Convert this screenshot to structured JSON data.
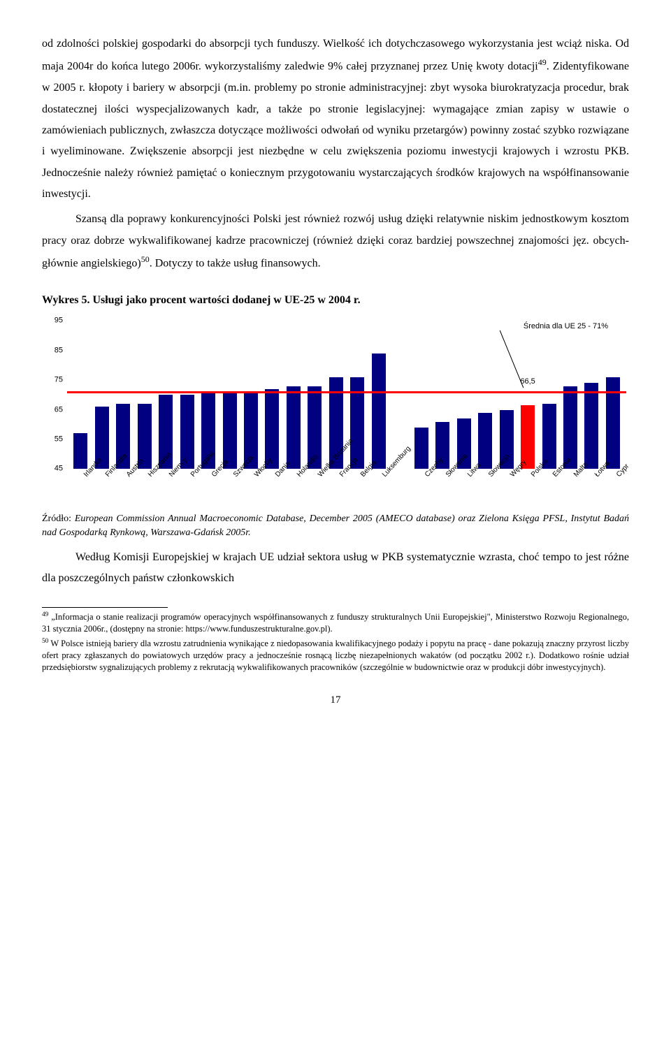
{
  "paragraphs": {
    "p1": "od zdolności polskiej gospodarki do absorpcji tych funduszy. Wielkość ich dotychczasowego wykorzystania jest wciąż niska. Od maja 2004r do końca lutego 2006r. wykorzystaliśmy zaledwie 9% całej przyznanej przez Unię kwoty dotacji",
    "p1_sup": "49",
    "p1_cont": ". Zidentyfikowane w 2005 r. kłopoty i bariery w absorpcji (m.in. problemy po stronie administracyjnej: zbyt wysoka biurokratyzacja procedur, brak dostatecznej ilości wyspecjalizowanych kadr, a także po stronie legislacyjnej: wymagające zmian zapisy w ustawie o zamówieniach publicznych, zwłaszcza dotyczące możliwości odwołań od wyniku przetargów) powinny zostać szybko rozwiązane i wyeliminowane. Zwiększenie absorpcji jest niezbędne w celu zwiększenia poziomu inwestycji krajowych i wzrostu PKB. Jednocześnie należy również pamiętać o koniecznym przygotowaniu wystarczających środków krajowych na współfinansowanie inwestycji.",
    "p2": "Szansą dla poprawy konkurencyjności Polski jest również rozwój usług dzięki relatywnie niskim jednostkowym kosztom pracy oraz dobrze wykwalifikowanej kadrze pracowniczej (również dzięki coraz bardziej powszechnej znajomości jęz. obcych-głównie angielskiego)",
    "p2_sup": "50",
    "p2_cont": ". Dotyczy to także usług finansowych."
  },
  "chart": {
    "title": "Wykres 5. Usługi jako procent wartości dodanej w UE-25 w 2004 r.",
    "ymin": 45,
    "ymax": 95,
    "yticks": [
      45,
      55,
      65,
      75,
      85,
      95
    ],
    "ref_line_value": 71,
    "ref_line_color": "#ff0000",
    "legend_text": "Średnia dla UE 25 - 71%",
    "bar_color": "#000080",
    "highlight_color": "#ff0000",
    "highlight_label": "66,5",
    "categories": [
      {
        "label": "Irlandia",
        "value": 57
      },
      {
        "label": "Finlandia",
        "value": 66
      },
      {
        "label": "Austria",
        "value": 67
      },
      {
        "label": "Hiszpania",
        "value": 67
      },
      {
        "label": "Niemcy",
        "value": 70
      },
      {
        "label": "Portugalia",
        "value": 70
      },
      {
        "label": "Grecja",
        "value": 71
      },
      {
        "label": "Szwecja",
        "value": 71
      },
      {
        "label": "Włochy",
        "value": 71
      },
      {
        "label": "Dania",
        "value": 72
      },
      {
        "label": "Holandia",
        "value": 73
      },
      {
        "label": "Wielka Brytania",
        "value": 73
      },
      {
        "label": "Francja",
        "value": 76
      },
      {
        "label": "Belgia",
        "value": 76
      },
      {
        "label": "Luksemburg",
        "value": 84
      },
      {
        "label": "",
        "value": null
      },
      {
        "label": "Czechy",
        "value": 59
      },
      {
        "label": "Słowenia",
        "value": 61
      },
      {
        "label": "Litwa",
        "value": 62
      },
      {
        "label": "Słowacja",
        "value": 64
      },
      {
        "label": "Węgry",
        "value": 65
      },
      {
        "label": "Polska",
        "value": 66.5,
        "highlight": true
      },
      {
        "label": "Estonia",
        "value": 67
      },
      {
        "label": "Malta",
        "value": 73
      },
      {
        "label": "Łotwa",
        "value": 74
      },
      {
        "label": "Cypr",
        "value": 76
      }
    ]
  },
  "source": {
    "lead": "Źródło: ",
    "italic": "European Commission Annual Macroeconomic Database, December 2005 (AMECO database) oraz Zielona Księga PFSL, Instytut Badań nad Gospodarką Rynkową, Warszawa-Gdańsk 2005r."
  },
  "p3": "Według Komisji Europejskiej w krajach UE udział sektora usług w PKB systematycznie wzrasta, choć tempo to jest różne dla poszczególnych państw członkowskich",
  "footnotes": {
    "f49_sup": "49",
    "f49": " „Informacja o stanie realizacji programów operacyjnych współfinansowanych z funduszy strukturalnych Unii Europejskiej\", Ministerstwo Rozwoju Regionalnego, 31 stycznia 2006r., (dostępny na stronie: https://www.funduszestrukturalne.gov.pl).",
    "f50_sup": "50",
    "f50": " W Polsce istnieją bariery dla wzrostu zatrudnienia wynikające z niedopasowania kwalifikacyjnego podaży i popytu na pracę - dane pokazują znaczny przyrost liczby ofert pracy zgłaszanych do powiatowych urzędów pracy a jednocześnie rosnącą liczbę niezapełnionych wakatów (od początku 2002 r.). Dodatkowo rośnie udział przedsiębiorstw sygnalizujących problemy z rekrutacją wykwalifikowanych pracowników (szczególnie w budownictwie oraz w produkcji dóbr inwestycyjnych)."
  },
  "page_number": "17"
}
